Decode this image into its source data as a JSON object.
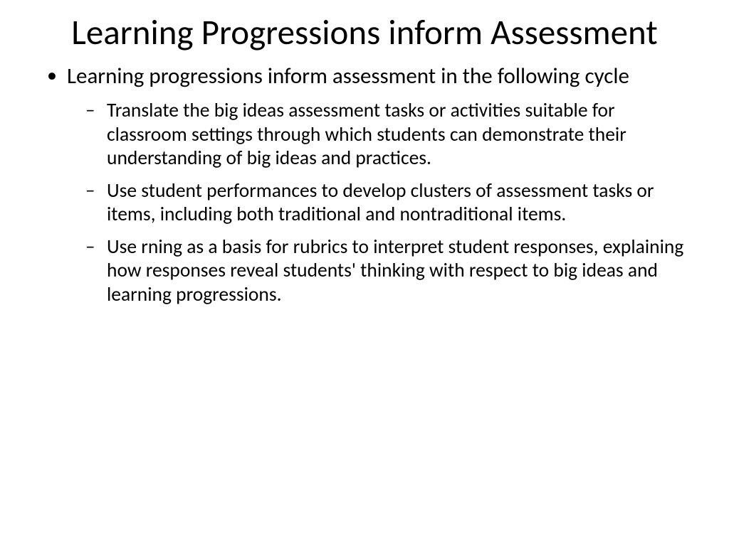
{
  "slide": {
    "title": "Learning Progressions inform Assessment",
    "bullets": [
      {
        "text": "Learning progressions inform assessment in the following cycle",
        "sub": [
          "Translate the big ideas assessment tasks or activities suitable for classroom settings through which students can demonstrate their understanding of big ideas and practices.",
          "Use student performances to develop clusters of assessment tasks or items, including both traditional and nontraditional items.",
          "Use rning as a basis for rubrics to interpret student responses, explaining how responses reveal students' thinking with respect to big ideas and learning progressions."
        ]
      }
    ]
  },
  "style": {
    "background_color": "#ffffff",
    "text_color": "#000000",
    "title_fontsize": 49,
    "level1_fontsize": 31,
    "level2_fontsize": 27.5,
    "font_family": "Calibri"
  }
}
